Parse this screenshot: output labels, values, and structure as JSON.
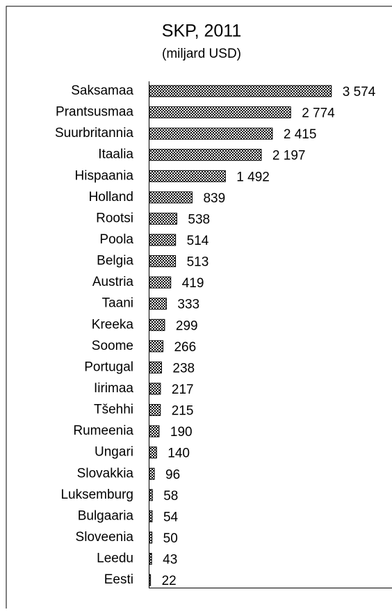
{
  "chart_data": {
    "type": "bar",
    "orientation": "horizontal",
    "title": "SKP, 2011",
    "subtitle": "(miljard USD)",
    "categories": [
      "Saksamaa",
      "Prantsusmaa",
      "Suurbritannia",
      "Itaalia",
      "Hispaania",
      "Holland",
      "Rootsi",
      "Poola",
      "Belgia",
      "Austria",
      "Taani",
      "Kreeka",
      "Soome",
      "Portugal",
      "Iirimaa",
      "Tšehhi",
      "Rumeenia",
      "Ungari",
      "Slovakkia",
      "Luksemburg",
      "Bulgaaria",
      "Sloveenia",
      "Leedu",
      "Eesti"
    ],
    "values": [
      3574,
      2774,
      2415,
      2197,
      1492,
      839,
      538,
      514,
      513,
      419,
      333,
      299,
      266,
      238,
      217,
      215,
      190,
      140,
      96,
      58,
      54,
      50,
      43,
      22
    ],
    "value_labels": [
      "3 574",
      "2 774",
      "2 415",
      "2 197",
      "1 492",
      "839",
      "538",
      "514",
      "513",
      "419",
      "333",
      "299",
      "266",
      "238",
      "217",
      "215",
      "190",
      "140",
      "96",
      "58",
      "54",
      "50",
      "43",
      "22"
    ],
    "xlim": [
      0,
      4000
    ]
  }
}
